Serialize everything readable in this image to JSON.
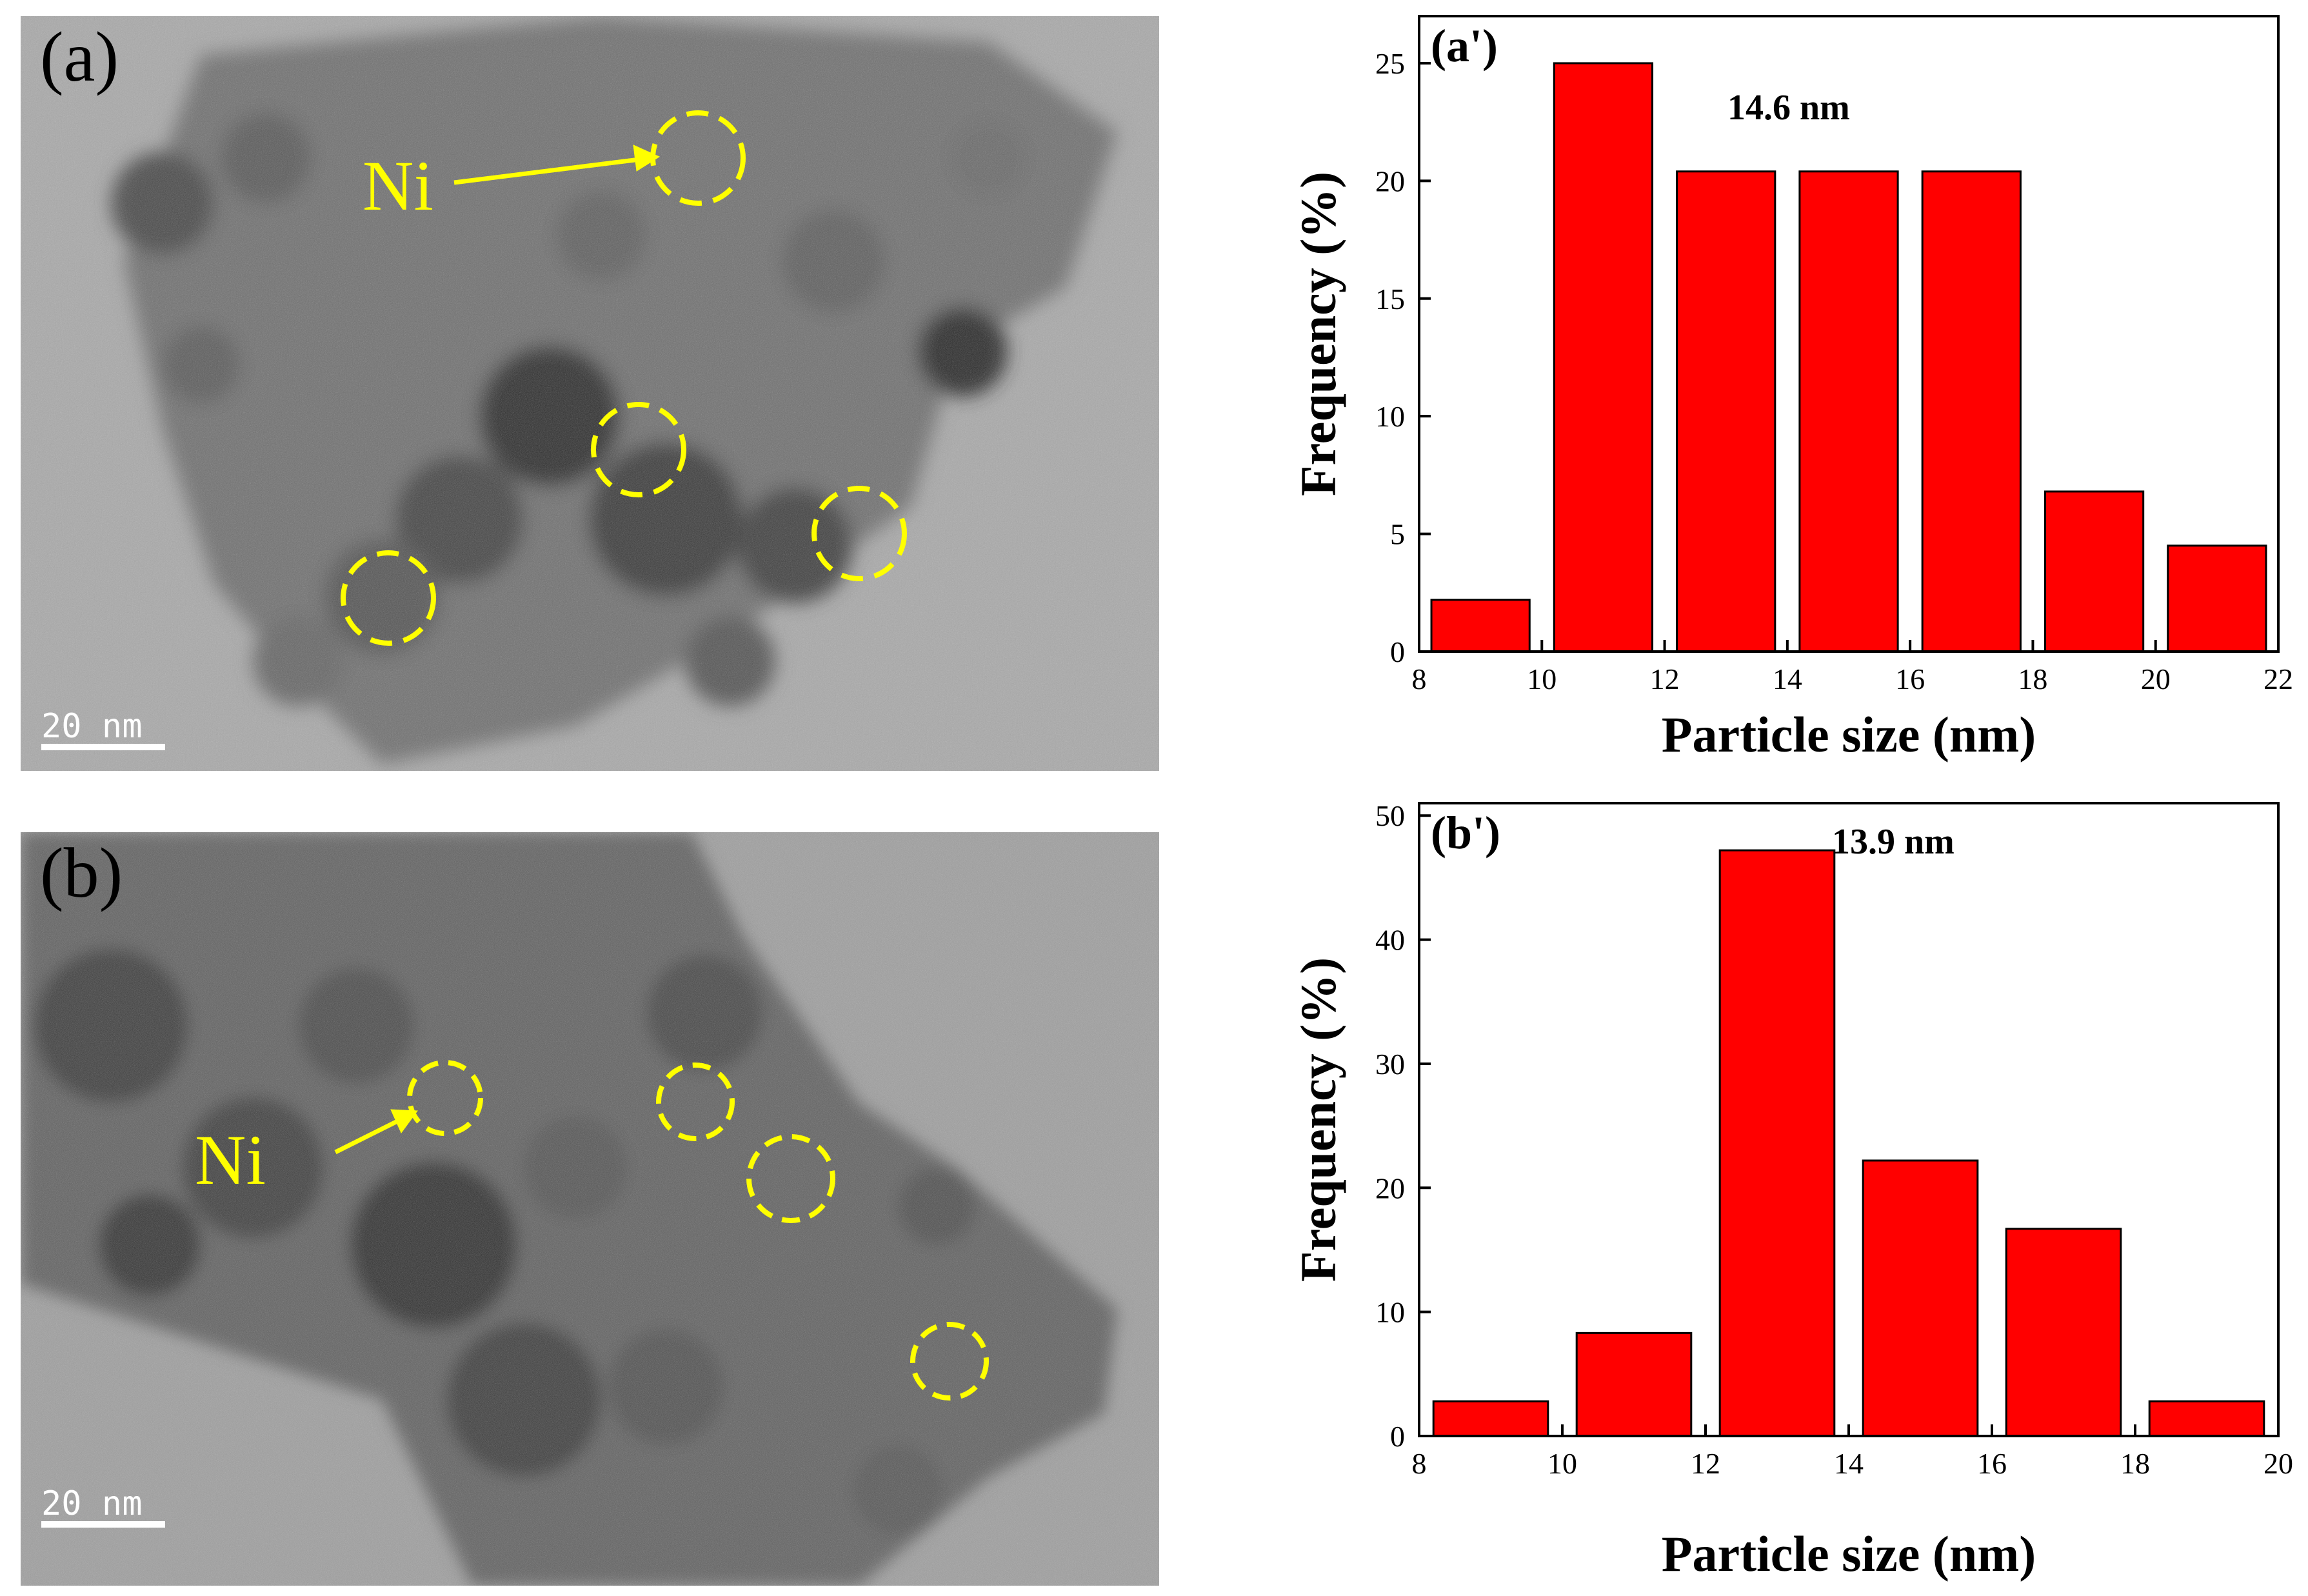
{
  "tem_panels": [
    {
      "label": "(a)",
      "callout": "Ni",
      "scale_bar": "20 nm",
      "background": "#8f8f8f"
    },
    {
      "label": "(b)",
      "callout": "Ni",
      "scale_bar": "20 nm",
      "background": "#7a7a7a"
    }
  ],
  "colors": {
    "bar_fill": "#ff0000",
    "bar_stroke": "#000000",
    "highlight_circle": "#ffff00"
  },
  "chart_data": [
    {
      "type": "bar",
      "panel_label": "(a')",
      "annotation": "14.6 nm",
      "xlabel": "Particle size (nm)",
      "ylabel": "Frequency (%)",
      "xlim": [
        8,
        22
      ],
      "ylim": [
        0,
        27
      ],
      "xticks": [
        8,
        10,
        12,
        14,
        16,
        18,
        20,
        22
      ],
      "yticks": [
        0,
        5,
        10,
        15,
        20,
        25
      ],
      "bars": [
        {
          "x0": 8.2,
          "x1": 9.8,
          "value": 2.2
        },
        {
          "x0": 10.2,
          "x1": 11.8,
          "value": 25.0
        },
        {
          "x0": 12.2,
          "x1": 13.8,
          "value": 20.4
        },
        {
          "x0": 14.2,
          "x1": 15.8,
          "value": 20.4
        },
        {
          "x0": 16.2,
          "x1": 17.8,
          "value": 20.4
        },
        {
          "x0": 18.2,
          "x1": 19.8,
          "value": 6.8
        },
        {
          "x0": 20.2,
          "x1": 21.8,
          "value": 4.5
        }
      ]
    },
    {
      "type": "bar",
      "panel_label": "(b')",
      "annotation": "13.9 nm",
      "xlabel": "Particle size (nm)",
      "ylabel": "Frequency (%)",
      "xlim": [
        8,
        20
      ],
      "ylim": [
        0,
        51
      ],
      "xticks": [
        8,
        10,
        12,
        14,
        16,
        18,
        20
      ],
      "yticks": [
        0,
        10,
        20,
        30,
        40,
        50
      ],
      "bars": [
        {
          "x0": 8.2,
          "x1": 9.8,
          "value": 2.8
        },
        {
          "x0": 10.2,
          "x1": 11.8,
          "value": 8.3
        },
        {
          "x0": 12.2,
          "x1": 13.8,
          "value": 47.2
        },
        {
          "x0": 14.2,
          "x1": 15.8,
          "value": 22.2
        },
        {
          "x0": 16.2,
          "x1": 17.8,
          "value": 16.7
        },
        {
          "x0": 18.2,
          "x1": 19.8,
          "value": 2.8
        }
      ]
    }
  ]
}
